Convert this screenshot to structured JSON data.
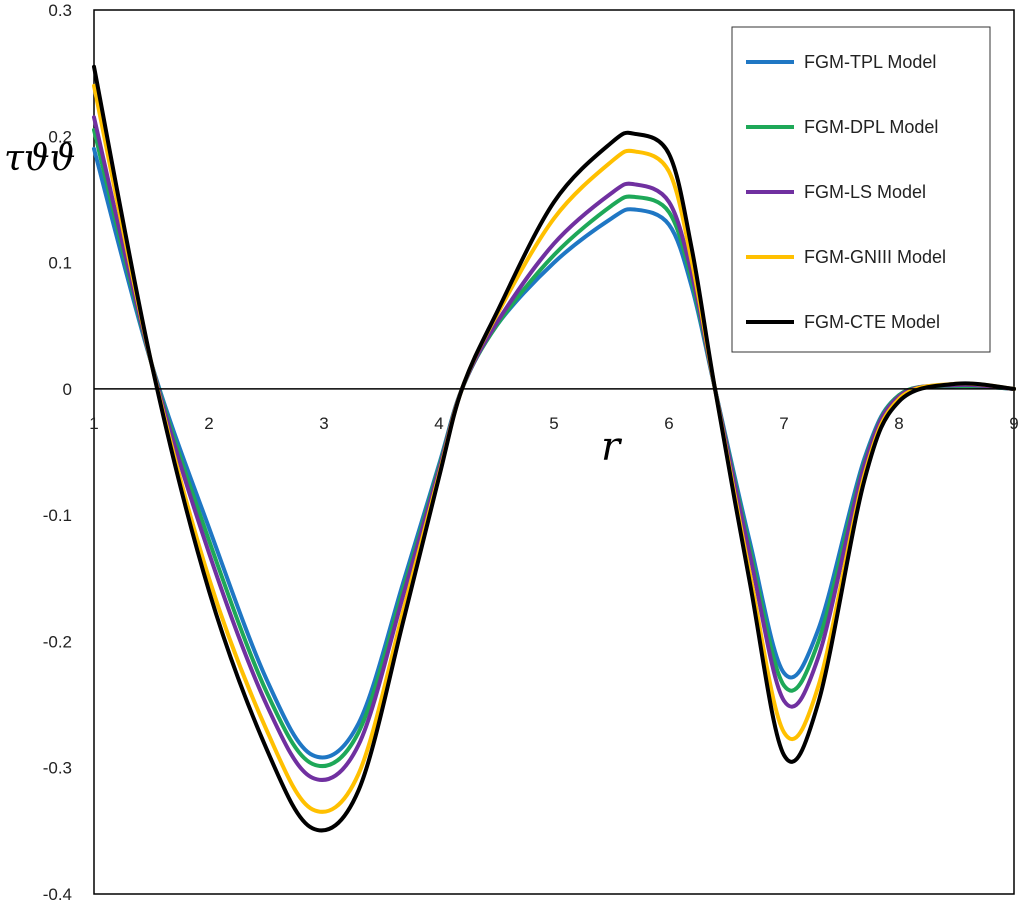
{
  "chart_data": {
    "type": "line",
    "title": "",
    "xlabel": "r",
    "ylabel": "τϑϑ",
    "xlim": [
      1,
      9
    ],
    "ylim": [
      -0.4,
      0.3
    ],
    "x_ticks": [
      "1",
      "2",
      "3",
      "4",
      "5",
      "6",
      "7",
      "8",
      "9"
    ],
    "y_ticks": [
      "0.3",
      "0.2",
      "0.1",
      "0",
      "-0.1",
      "-0.2",
      "-0.3",
      "-0.4"
    ],
    "grid": false,
    "legend_position": "top-right",
    "x": [
      1.0,
      1.5,
      2.0,
      2.5,
      2.9,
      3.3,
      3.7,
      4.0,
      4.2,
      4.5,
      5.0,
      5.5,
      5.7,
      6.0,
      6.2,
      6.4,
      6.7,
      7.0,
      7.3,
      7.7,
      8.0,
      8.5,
      9.0
    ],
    "series": [
      {
        "name": "FGM-TPL Model",
        "color": "#1f77c4",
        "values": [
          0.19,
          0.02,
          -0.11,
          -0.23,
          -0.29,
          -0.265,
          -0.15,
          -0.06,
          0.0,
          0.05,
          0.1,
          0.135,
          0.142,
          0.13,
          0.08,
          0.0,
          -0.12,
          -0.225,
          -0.19,
          -0.055,
          -0.005,
          0.002,
          0.0
        ]
      },
      {
        "name": "FGM-DPL Model",
        "color": "#1ea858",
        "values": [
          0.205,
          0.02,
          -0.12,
          -0.24,
          -0.297,
          -0.272,
          -0.155,
          -0.062,
          0.0,
          0.05,
          0.106,
          0.145,
          0.152,
          0.14,
          0.085,
          0.0,
          -0.125,
          -0.235,
          -0.2,
          -0.058,
          -0.005,
          0.002,
          0.0
        ]
      },
      {
        "name": "FGM-LS Model",
        "color": "#7030a0",
        "values": [
          0.215,
          0.02,
          -0.13,
          -0.25,
          -0.308,
          -0.282,
          -0.16,
          -0.064,
          0.0,
          0.052,
          0.115,
          0.155,
          0.162,
          0.148,
          0.09,
          0.0,
          -0.13,
          -0.247,
          -0.212,
          -0.06,
          -0.006,
          0.003,
          0.0
        ]
      },
      {
        "name": "FGM-GNIII Model",
        "color": "#ffc000",
        "values": [
          0.24,
          0.02,
          -0.15,
          -0.27,
          -0.333,
          -0.305,
          -0.172,
          -0.068,
          0.0,
          0.058,
          0.135,
          0.18,
          0.188,
          0.172,
          0.1,
          0.0,
          -0.145,
          -0.272,
          -0.235,
          -0.068,
          -0.008,
          0.004,
          0.0
        ]
      },
      {
        "name": "FGM-CTE  Model",
        "color": "#000000",
        "values": [
          0.255,
          0.02,
          -0.16,
          -0.285,
          -0.348,
          -0.318,
          -0.18,
          -0.07,
          0.0,
          0.06,
          0.148,
          0.195,
          0.202,
          0.186,
          0.11,
          0.0,
          -0.152,
          -0.29,
          -0.248,
          -0.072,
          -0.01,
          0.004,
          0.0
        ]
      }
    ]
  }
}
